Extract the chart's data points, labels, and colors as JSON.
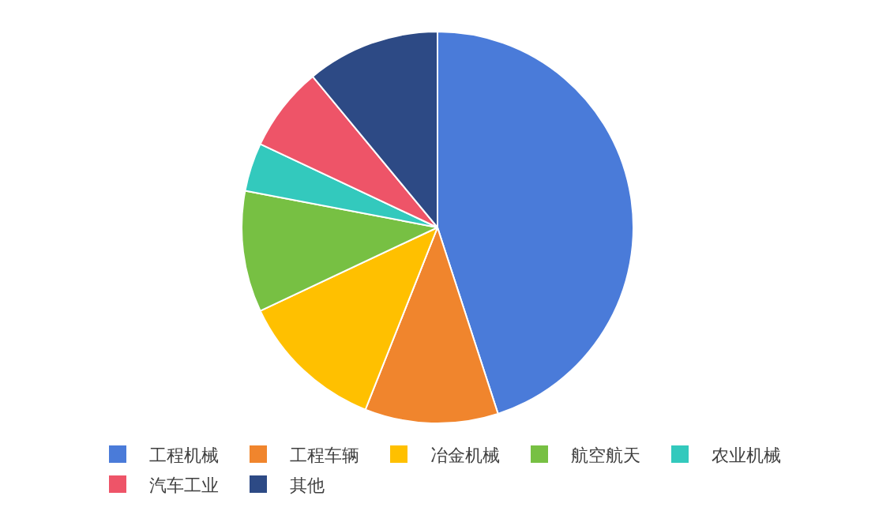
{
  "chart_data": {
    "type": "pie",
    "categories": [
      "工程机械",
      "工程车辆",
      "冶金机械",
      "航空航天",
      "农业机械",
      "汽车工业",
      "其他"
    ],
    "values": [
      45,
      11,
      12,
      10,
      4,
      7,
      11
    ],
    "colors": [
      "#4a7bd9",
      "#f0852d",
      "#ffc000",
      "#77c043",
      "#33c9bd",
      "#ee5468",
      "#2d4a85"
    ],
    "legend": "bottom"
  }
}
